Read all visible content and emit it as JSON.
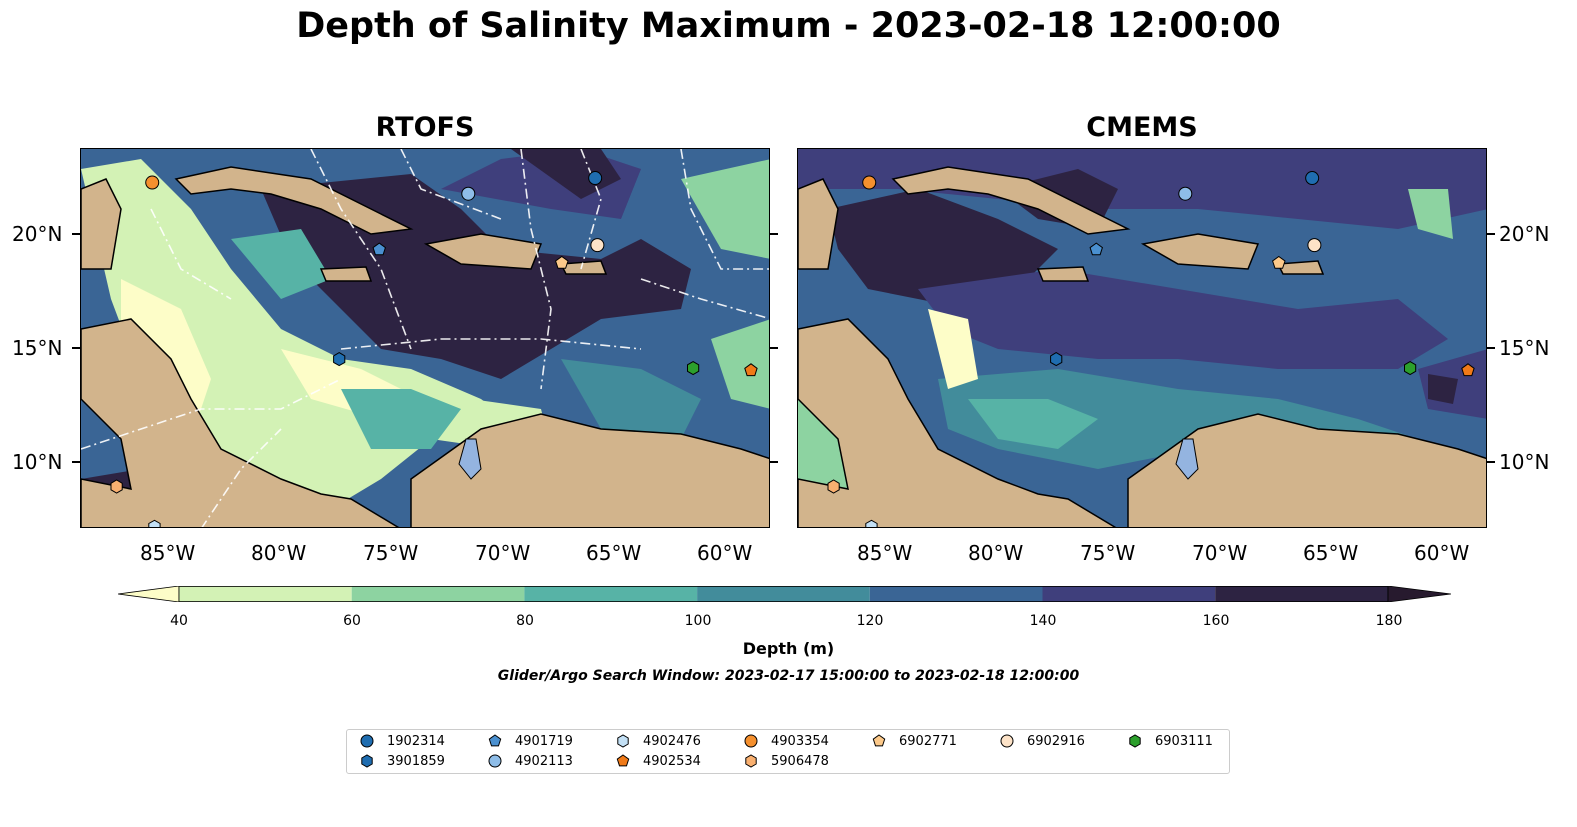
{
  "title": "Depth of Salinity Maximum - 2023-02-18 12:00:00",
  "panels": [
    {
      "title": "RTOFS"
    },
    {
      "title": "CMEMS"
    }
  ],
  "axes": {
    "lon_ticks": [
      "85°W",
      "80°W",
      "75°W",
      "70°W",
      "65°W",
      "60°W"
    ],
    "lat_ticks": [
      "20°N",
      "15°N",
      "10°N"
    ],
    "lon_range": [
      -89,
      -58
    ],
    "lat_range": [
      7,
      24
    ]
  },
  "colorbar": {
    "label": "Depth (m)",
    "tick_labels": [
      "40",
      "60",
      "80",
      "100",
      "120",
      "140",
      "160",
      "180"
    ],
    "extend": "both",
    "colors": [
      "#fdfdc8",
      "#d3f2b5",
      "#8dd3a1",
      "#57b3a6",
      "#428c9b",
      "#3a6595",
      "#3f3f7c",
      "#2d2342",
      "#271a2e"
    ]
  },
  "search_window": "Glider/Argo Search Window: 2023-02-17 15:00:00 to 2023-02-18 12:00:00",
  "land_color": "#d2b48c",
  "floats": [
    {
      "id": "1902314",
      "shape": "circle",
      "color": "#1f6db0",
      "lon": -65.9,
      "lat": 22.7
    },
    {
      "id": "3901859",
      "shape": "hexagon",
      "color": "#1f6db0",
      "lon": -77.4,
      "lat": 14.6
    },
    {
      "id": "4901719",
      "shape": "pentagon",
      "color": "#4a90d0",
      "lon": -75.6,
      "lat": 19.5
    },
    {
      "id": "4902113",
      "shape": "circle",
      "color": "#8ebde8",
      "lon": -71.6,
      "lat": 22.0
    },
    {
      "id": "4902476",
      "shape": "hexagon",
      "color": "#c3e0f5",
      "lon": -85.7,
      "lat": 7.1
    },
    {
      "id": "4902534",
      "shape": "pentagon",
      "color": "#f07a18",
      "lon": -58.9,
      "lat": 14.1
    },
    {
      "id": "4903354",
      "shape": "circle",
      "color": "#f5902e",
      "lon": -85.8,
      "lat": 22.5
    },
    {
      "id": "5906478",
      "shape": "hexagon",
      "color": "#f9b070",
      "lon": -87.4,
      "lat": 8.9
    },
    {
      "id": "6902771",
      "shape": "pentagon",
      "color": "#fcc98a",
      "lon": -67.4,
      "lat": 18.9
    },
    {
      "id": "6902916",
      "shape": "circle",
      "color": "#fde3c8",
      "lon": -65.8,
      "lat": 19.7
    },
    {
      "id": "6903111",
      "shape": "hexagon",
      "color": "#2ca02c",
      "lon": -61.5,
      "lat": 14.2
    }
  ]
}
